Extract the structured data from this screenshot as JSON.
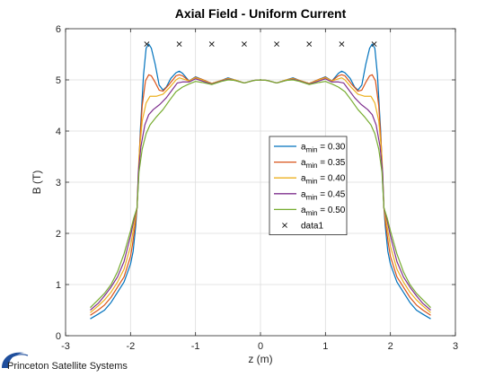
{
  "chart_data": {
    "type": "line",
    "title": "Axial Field - Uniform Current",
    "xlabel": "z (m)",
    "ylabel": "B (T)",
    "xlim": [
      -3,
      3
    ],
    "ylim": [
      0,
      6
    ],
    "xticks": [
      -3,
      -2,
      -1,
      0,
      1,
      2,
      3
    ],
    "yticks": [
      0,
      1,
      2,
      3,
      4,
      5,
      6
    ],
    "xtick_labels": [
      "-3",
      "-2",
      "-1",
      "0",
      "1",
      "2",
      "3"
    ],
    "ytick_labels": [
      "0",
      "1",
      "2",
      "3",
      "4",
      "5",
      "6"
    ],
    "grid": true,
    "legend_position": "center-right",
    "series": [
      {
        "name_base": "a",
        "name_sub": "min",
        "name_value": " = 0.30",
        "color": "#0072BD",
        "points": [
          [
            0,
            5.0
          ],
          [
            0.1,
            4.99
          ],
          [
            0.25,
            4.94
          ],
          [
            0.4,
            5.0
          ],
          [
            0.5,
            5.04
          ],
          [
            0.6,
            4.99
          ],
          [
            0.75,
            4.93
          ],
          [
            0.9,
            5.01
          ],
          [
            1.0,
            5.06
          ],
          [
            1.1,
            4.98
          ],
          [
            1.2,
            5.13
          ],
          [
            1.25,
            5.17
          ],
          [
            1.3,
            5.14
          ],
          [
            1.38,
            5.03
          ],
          [
            1.45,
            4.86
          ],
          [
            1.5,
            4.8
          ],
          [
            1.56,
            4.9
          ],
          [
            1.62,
            5.3
          ],
          [
            1.68,
            5.62
          ],
          [
            1.72,
            5.7
          ],
          [
            1.76,
            5.62
          ],
          [
            1.8,
            5.1
          ],
          [
            1.85,
            4.0
          ],
          [
            1.88,
            3.0
          ],
          [
            1.9,
            2.5
          ],
          [
            1.92,
            2.15
          ],
          [
            1.96,
            1.65
          ],
          [
            2.0,
            1.4
          ],
          [
            2.1,
            1.05
          ],
          [
            2.2,
            0.85
          ],
          [
            2.3,
            0.65
          ],
          [
            2.4,
            0.5
          ],
          [
            2.5,
            0.42
          ],
          [
            2.62,
            0.33
          ]
        ]
      },
      {
        "name_base": "a",
        "name_sub": "min",
        "name_value": " = 0.35",
        "color": "#D95319",
        "points": [
          [
            0,
            5.0
          ],
          [
            0.1,
            4.99
          ],
          [
            0.25,
            4.94
          ],
          [
            0.4,
            5.0
          ],
          [
            0.5,
            5.03
          ],
          [
            0.6,
            4.99
          ],
          [
            0.75,
            4.93
          ],
          [
            0.9,
            5.01
          ],
          [
            1.0,
            5.05
          ],
          [
            1.1,
            4.98
          ],
          [
            1.2,
            5.08
          ],
          [
            1.25,
            5.1
          ],
          [
            1.3,
            5.08
          ],
          [
            1.4,
            4.92
          ],
          [
            1.5,
            4.78
          ],
          [
            1.56,
            4.8
          ],
          [
            1.62,
            4.95
          ],
          [
            1.68,
            5.08
          ],
          [
            1.72,
            5.1
          ],
          [
            1.77,
            4.98
          ],
          [
            1.82,
            4.5
          ],
          [
            1.86,
            3.7
          ],
          [
            1.9,
            2.5
          ],
          [
            1.93,
            2.15
          ],
          [
            1.97,
            1.78
          ],
          [
            2.0,
            1.55
          ],
          [
            2.1,
            1.15
          ],
          [
            2.2,
            0.95
          ],
          [
            2.3,
            0.75
          ],
          [
            2.4,
            0.6
          ],
          [
            2.5,
            0.5
          ],
          [
            2.62,
            0.4
          ]
        ]
      },
      {
        "name_base": "a",
        "name_sub": "min",
        "name_value": " = 0.40",
        "color": "#EDB120",
        "points": [
          [
            0,
            5.0
          ],
          [
            0.1,
            4.99
          ],
          [
            0.25,
            4.94
          ],
          [
            0.4,
            5.0
          ],
          [
            0.5,
            5.02
          ],
          [
            0.6,
            4.99
          ],
          [
            0.75,
            4.93
          ],
          [
            0.9,
            5.0
          ],
          [
            1.0,
            5.04
          ],
          [
            1.1,
            4.98
          ],
          [
            1.2,
            5.02
          ],
          [
            1.25,
            5.04
          ],
          [
            1.3,
            5.0
          ],
          [
            1.4,
            4.85
          ],
          [
            1.5,
            4.72
          ],
          [
            1.6,
            4.68
          ],
          [
            1.7,
            4.68
          ],
          [
            1.76,
            4.55
          ],
          [
            1.82,
            4.2
          ],
          [
            1.87,
            3.5
          ],
          [
            1.9,
            2.5
          ],
          [
            1.94,
            2.2
          ],
          [
            1.98,
            1.9
          ],
          [
            2.0,
            1.75
          ],
          [
            2.1,
            1.3
          ],
          [
            2.2,
            1.05
          ],
          [
            2.3,
            0.85
          ],
          [
            2.4,
            0.7
          ],
          [
            2.5,
            0.58
          ],
          [
            2.62,
            0.45
          ]
        ]
      },
      {
        "name_base": "a",
        "name_sub": "min",
        "name_value": " = 0.45",
        "color": "#7E2F8E",
        "points": [
          [
            0,
            5.0
          ],
          [
            0.1,
            4.99
          ],
          [
            0.25,
            4.94
          ],
          [
            0.4,
            4.99
          ],
          [
            0.5,
            5.01
          ],
          [
            0.6,
            4.98
          ],
          [
            0.75,
            4.92
          ],
          [
            0.9,
            4.98
          ],
          [
            1.0,
            5.02
          ],
          [
            1.1,
            4.96
          ],
          [
            1.2,
            4.96
          ],
          [
            1.28,
            4.94
          ],
          [
            1.35,
            4.82
          ],
          [
            1.45,
            4.65
          ],
          [
            1.55,
            4.52
          ],
          [
            1.65,
            4.42
          ],
          [
            1.72,
            4.32
          ],
          [
            1.78,
            4.12
          ],
          [
            1.84,
            3.7
          ],
          [
            1.88,
            3.2
          ],
          [
            1.9,
            2.5
          ],
          [
            1.95,
            2.25
          ],
          [
            2.0,
            1.95
          ],
          [
            2.1,
            1.45
          ],
          [
            2.2,
            1.15
          ],
          [
            2.3,
            0.95
          ],
          [
            2.4,
            0.78
          ],
          [
            2.5,
            0.63
          ],
          [
            2.62,
            0.5
          ]
        ]
      },
      {
        "name_base": "a",
        "name_sub": "min",
        "name_value": " = 0.50",
        "color": "#77AC30",
        "points": [
          [
            0,
            5.0
          ],
          [
            0.1,
            4.99
          ],
          [
            0.25,
            4.94
          ],
          [
            0.4,
            4.99
          ],
          [
            0.5,
            5.0
          ],
          [
            0.6,
            4.97
          ],
          [
            0.75,
            4.91
          ],
          [
            0.9,
            4.95
          ],
          [
            1.0,
            4.97
          ],
          [
            1.1,
            4.92
          ],
          [
            1.2,
            4.86
          ],
          [
            1.3,
            4.77
          ],
          [
            1.4,
            4.6
          ],
          [
            1.5,
            4.42
          ],
          [
            1.6,
            4.28
          ],
          [
            1.7,
            4.12
          ],
          [
            1.76,
            3.95
          ],
          [
            1.82,
            3.65
          ],
          [
            1.87,
            3.2
          ],
          [
            1.9,
            2.5
          ],
          [
            1.95,
            2.3
          ],
          [
            2.0,
            2.05
          ],
          [
            2.1,
            1.6
          ],
          [
            2.2,
            1.25
          ],
          [
            2.3,
            1.0
          ],
          [
            2.4,
            0.83
          ],
          [
            2.5,
            0.7
          ],
          [
            2.62,
            0.55
          ]
        ]
      },
      {
        "name": "data1",
        "color": "#1a1a1a",
        "marker": "x",
        "linestyle": "none",
        "x": [
          -1.75,
          -1.25,
          -0.75,
          -0.25,
          0.25,
          0.75,
          1.25,
          1.75
        ],
        "y": [
          5.7,
          5.7,
          5.7,
          5.7,
          5.7,
          5.7,
          5.7,
          5.7
        ]
      }
    ]
  },
  "branding": {
    "company": "Princeton Satellite Systems",
    "logo_name": "princeton-satellite-systems-logo"
  }
}
